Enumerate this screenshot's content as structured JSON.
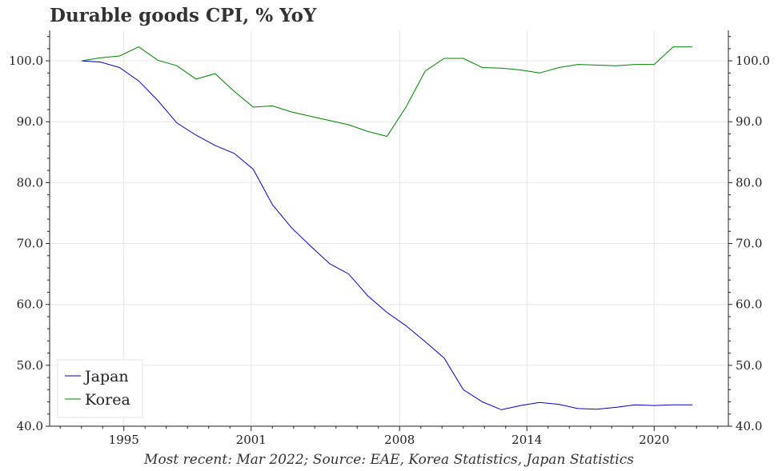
{
  "chart_data": {
    "type": "line",
    "title": "Durable goods CPI, % YoY",
    "caption": "Most recent: Mar 2022; Source: EAE, Korea Statistics, Japan Statistics",
    "xlabel": "",
    "ylabel": "",
    "xlim": [
      1991.5,
      2023.5
    ],
    "ylim": [
      40,
      105
    ],
    "x_ticks": [
      1995,
      2001,
      2008,
      2014,
      2020
    ],
    "x_tick_labels": [
      "1995",
      "2001",
      "2008",
      "2014",
      "2020"
    ],
    "y_ticks": [
      40,
      50,
      60,
      70,
      80,
      90,
      100
    ],
    "y_tick_labels": [
      "40.0",
      "50.0",
      "60.0",
      "70.0",
      "80.0",
      "90.0",
      "100.0"
    ],
    "grid": true,
    "legend_position": "bottom-left",
    "x": [
      1993.0,
      1993.9,
      1994.8,
      1995.7,
      1996.6,
      1997.5,
      1998.4,
      1999.3,
      2000.2,
      2001.1,
      2002.0,
      2002.9,
      2003.8,
      2004.7,
      2005.6,
      2006.5,
      2007.4,
      2008.3,
      2009.2,
      2010.1,
      2011.0,
      2011.9,
      2012.8,
      2013.7,
      2014.6,
      2015.5,
      2016.4,
      2017.3,
      2018.2,
      2019.1,
      2020.0,
      2020.9,
      2021.8
    ],
    "series": [
      {
        "name": "Japan",
        "color": "#0000cc",
        "values": [
          100.0,
          99.8,
          98.9,
          96.7,
          93.5,
          89.8,
          87.8,
          86.1,
          84.8,
          82.2,
          76.4,
          72.6,
          69.6,
          66.7,
          65.0,
          61.4,
          58.7,
          56.5,
          53.9,
          51.2,
          46.0,
          44.0,
          42.7,
          43.4,
          43.9,
          43.6,
          42.9,
          42.8,
          43.1,
          43.5,
          43.4,
          43.5,
          43.5
        ]
      },
      {
        "name": "Korea",
        "color": "#008000",
        "values": [
          100.0,
          100.5,
          100.8,
          102.3,
          100.1,
          99.2,
          97.0,
          97.9,
          95.0,
          92.4,
          92.6,
          91.6,
          90.9,
          90.2,
          89.5,
          88.4,
          87.6,
          92.4,
          98.3,
          100.4,
          100.4,
          98.9,
          98.8,
          98.5,
          98.0,
          98.9,
          99.4,
          99.3,
          99.2,
          99.4,
          99.4,
          102.3,
          102.3
        ]
      }
    ]
  }
}
